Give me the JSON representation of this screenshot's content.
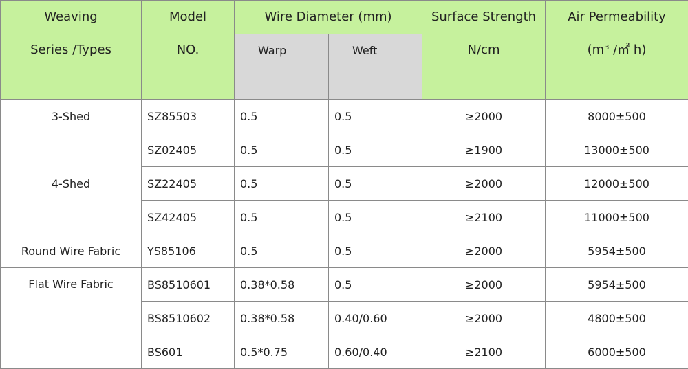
{
  "header": {
    "weaving": [
      "Weaving",
      "Series /Types"
    ],
    "model": [
      "Model",
      "NO."
    ],
    "wire_diameter": "Wire Diameter (mm)",
    "warp": "Warp",
    "weft": "Weft",
    "surface_strength": [
      "Surface Strength",
      "N/cm"
    ],
    "air_permeability": [
      "Air Permeability",
      "(m³ /㎡ h)"
    ]
  },
  "groups": [
    {
      "type": "3-Shed",
      "rows": [
        [
          "SZ85503",
          "0.5",
          "0.5",
          "≥2000",
          "8000±500"
        ]
      ]
    },
    {
      "type": "4-Shed",
      "rows": [
        [
          "SZ02405",
          "0.5",
          "0.5",
          "≥1900",
          "13000±500"
        ],
        [
          "SZ22405",
          "0.5",
          "0.5",
          "≥2000",
          "12000±500"
        ],
        [
          "SZ42405",
          "0.5",
          "0.5",
          "≥2100",
          "11000±500"
        ]
      ]
    },
    {
      "type": "Round Wire Fabric",
      "rows": [
        [
          "YS85106",
          "0.5",
          "0.5",
          "≥2000",
          "5954±500"
        ]
      ]
    },
    {
      "type": "Flat Wire Fabric",
      "rows": [
        [
          "BS8510601",
          "0.38*0.58",
          "0.5",
          "≥2000",
          "5954±500"
        ],
        [
          "BS8510602",
          "0.38*0.58",
          "0.40/0.60",
          "≥2000",
          "4800±500"
        ],
        [
          "BS601",
          "0.5*0.75",
          "0.60/0.40",
          "≥2100",
          "6000±500"
        ]
      ]
    }
  ]
}
